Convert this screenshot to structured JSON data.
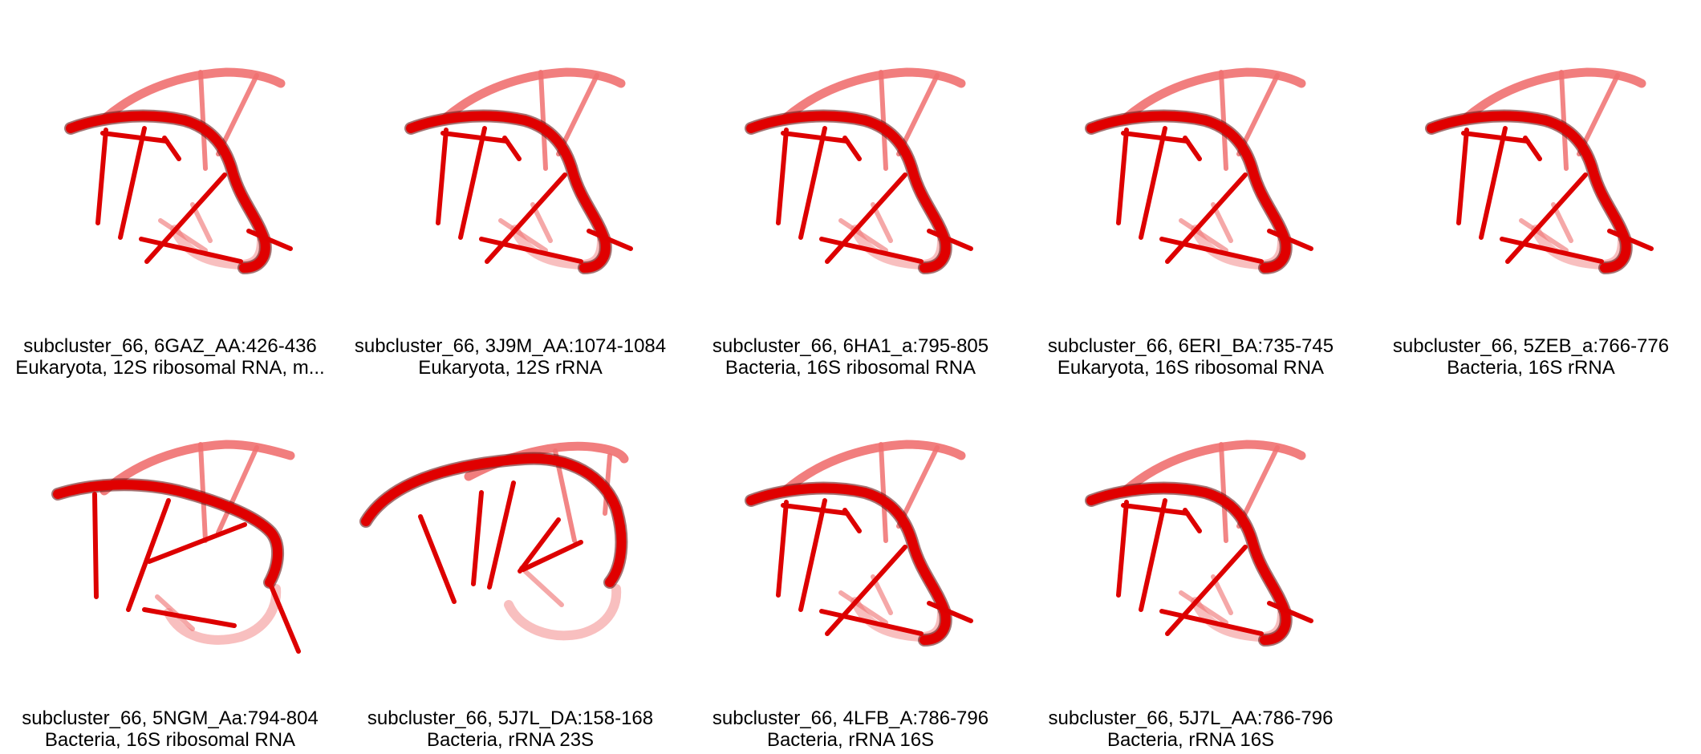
{
  "colors": {
    "background": "#ffffff",
    "backbone": "#e00000",
    "backbone_light": "#f07070",
    "backbone_shadow": "#5a0000",
    "base_stick": "#dd0000",
    "text": "#000000"
  },
  "panels": [
    {
      "id": "subcluster_66, 6GAZ_AA:426-436",
      "taxonomy": "Eukaryota, 12S ribosomal RNA, m...",
      "variant": "a"
    },
    {
      "id": "subcluster_66, 3J9M_AA:1074-1084",
      "taxonomy": "Eukaryota, 12S rRNA",
      "variant": "a"
    },
    {
      "id": "subcluster_66, 6HA1_a:795-805",
      "taxonomy": "Bacteria, 16S ribosomal RNA",
      "variant": "a"
    },
    {
      "id": "subcluster_66, 6ERI_BA:735-745",
      "taxonomy": "Eukaryota, 16S ribosomal RNA",
      "variant": "a"
    },
    {
      "id": "subcluster_66, 5ZEB_a:766-776",
      "taxonomy": "Bacteria, 16S rRNA",
      "variant": "a"
    },
    {
      "id": "subcluster_66, 5NGM_Aa:794-804",
      "taxonomy": "Bacteria, 16S ribosomal RNA",
      "variant": "b"
    },
    {
      "id": "subcluster_66, 5J7L_DA:158-168",
      "taxonomy": "Bacteria, rRNA 23S",
      "variant": "c"
    },
    {
      "id": "subcluster_66, 4LFB_A:786-796",
      "taxonomy": "Bacteria, rRNA 16S",
      "variant": "a"
    },
    {
      "id": "subcluster_66, 5J7L_AA:786-796",
      "taxonomy": "Bacteria, rRNA 16S",
      "variant": "a"
    }
  ]
}
